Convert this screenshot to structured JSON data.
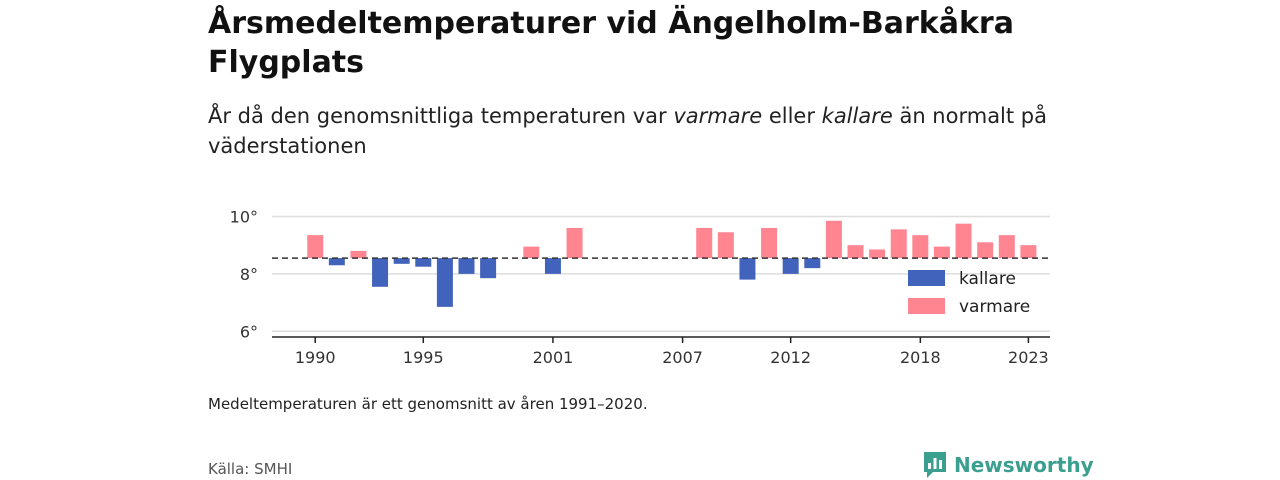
{
  "title": "Årsmedeltemperaturer vid Ängelholm-Barkåkra Flygplats",
  "subtitle": {
    "before": "År då den genomsnittliga temperaturen var ",
    "warm_word": "varmare",
    "middle": " eller ",
    "cold_word": "kallare",
    "after": " än normalt på väderstationen"
  },
  "note": "Medeltemperaturen är ett genomsnitt av åren 1991–2020.",
  "source": "Källa: SMHI",
  "brand": "Newsworthy",
  "colors": {
    "warm": "#ff8591",
    "cold": "#4263bb",
    "brand": "#3a9f8f"
  },
  "chart_data": {
    "type": "bar",
    "x_range": [
      1988,
      2024
    ],
    "ylim": [
      5.8,
      10.4
    ],
    "y_ticks": [
      6,
      8,
      10
    ],
    "y_tick_labels": [
      "6°",
      "8°",
      "10°"
    ],
    "x_ticks": [
      1990,
      1995,
      2001,
      2007,
      2012,
      2018,
      2023
    ],
    "x_tick_labels": [
      "1990",
      "1995",
      "2001",
      "2007",
      "2012",
      "2018",
      "2023"
    ],
    "baseline": 8.55,
    "baseline_style": "dashed",
    "legend": [
      {
        "key": "cold",
        "label": "kallare"
      },
      {
        "key": "warm",
        "label": "varmare"
      }
    ],
    "legend_placement": "bottom-right",
    "grid": true,
    "x": [
      1990,
      1991,
      1992,
      1993,
      1994,
      1995,
      1996,
      1997,
      1998,
      2000,
      2001,
      2002,
      2008,
      2009,
      2010,
      2011,
      2012,
      2013,
      2014,
      2015,
      2016,
      2017,
      2018,
      2019,
      2020,
      2021,
      2022,
      2023
    ],
    "values": [
      9.35,
      8.3,
      8.8,
      7.55,
      8.35,
      8.25,
      6.85,
      8.0,
      7.85,
      8.95,
      8.0,
      9.6,
      9.6,
      9.45,
      7.8,
      9.6,
      8.0,
      8.2,
      9.85,
      9.0,
      8.85,
      9.55,
      9.35,
      8.95,
      9.75,
      9.1,
      9.35,
      9.0
    ]
  }
}
